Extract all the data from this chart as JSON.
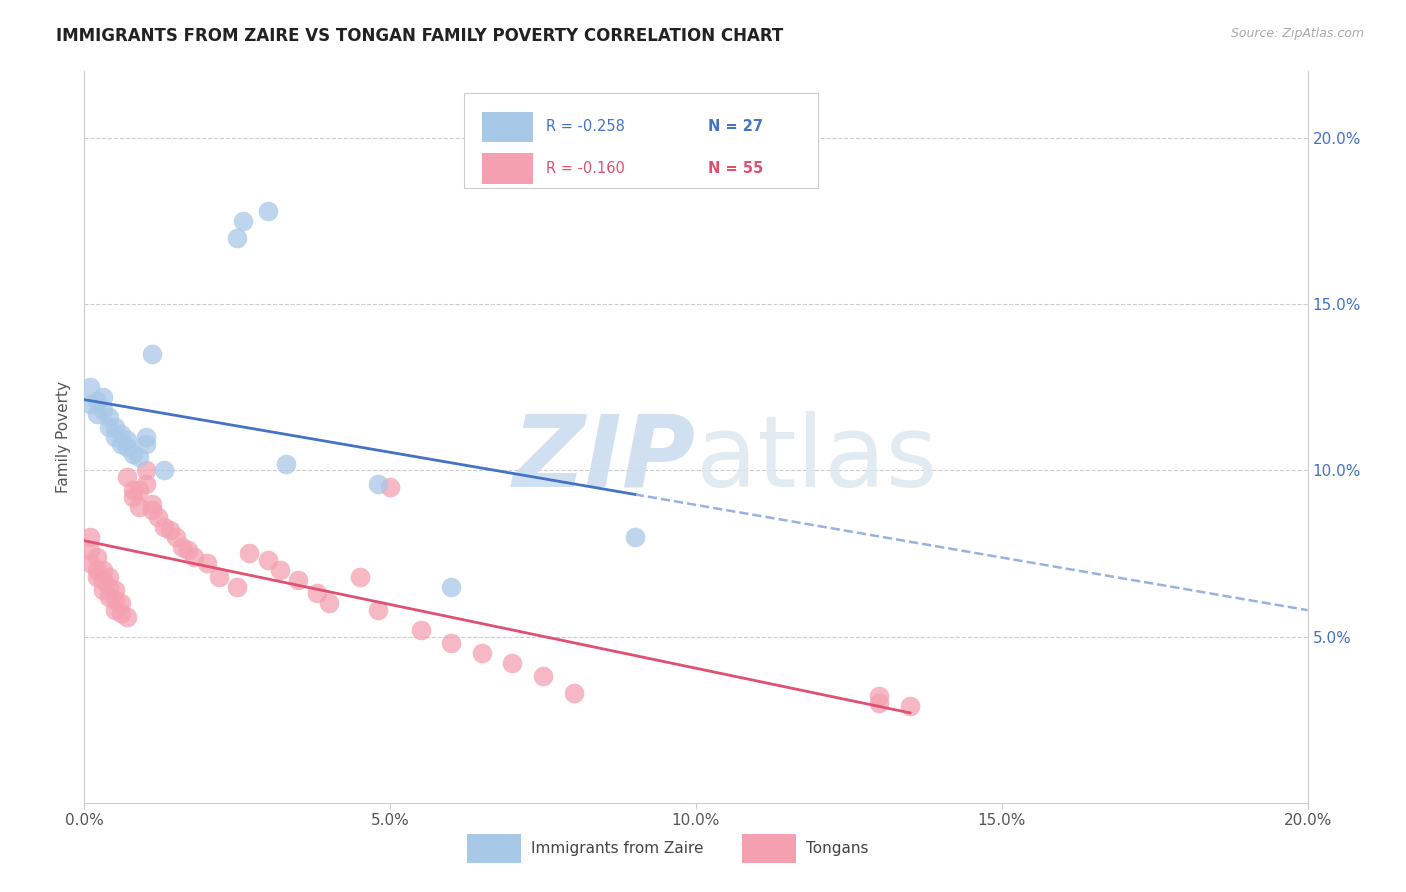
{
  "title": "IMMIGRANTS FROM ZAIRE VS TONGAN FAMILY POVERTY CORRELATION CHART",
  "source": "Source: ZipAtlas.com",
  "ylabel": "Family Poverty",
  "legend_label1": "Immigrants from Zaire",
  "legend_label2": "Tongans",
  "legend_r1": "R = -0.258",
  "legend_n1": "N = 27",
  "legend_r2": "R = -0.160",
  "legend_n2": "N = 55",
  "color_blue": "#a8c8e8",
  "color_pink": "#f4a0b0",
  "color_blue_line": "#4472c4",
  "color_pink_line": "#e05070",
  "color_blue_text": "#4472c4",
  "color_pink_text": "#e05070",
  "xlim": [
    0.0,
    0.2
  ],
  "ylim": [
    0.0,
    0.22
  ],
  "yticks": [
    0.05,
    0.1,
    0.15,
    0.2
  ],
  "ytick_labels": [
    "5.0%",
    "10.0%",
    "15.0%",
    "20.0%"
  ],
  "xticks": [
    0.0,
    0.05,
    0.1,
    0.15,
    0.2
  ],
  "xtick_labels": [
    "0.0%",
    "5.0%",
    "10.0%",
    "15.0%",
    "20.0%"
  ],
  "blue_x": [
    0.001,
    0.001,
    0.002,
    0.002,
    0.003,
    0.003,
    0.004,
    0.004,
    0.005,
    0.005,
    0.006,
    0.006,
    0.007,
    0.007,
    0.008,
    0.009,
    0.01,
    0.01,
    0.011,
    0.013,
    0.025,
    0.026,
    0.03,
    0.033,
    0.048,
    0.06,
    0.09
  ],
  "blue_y": [
    0.12,
    0.125,
    0.117,
    0.121,
    0.118,
    0.122,
    0.113,
    0.116,
    0.11,
    0.113,
    0.108,
    0.111,
    0.107,
    0.109,
    0.105,
    0.104,
    0.108,
    0.11,
    0.135,
    0.1,
    0.17,
    0.175,
    0.178,
    0.102,
    0.096,
    0.065,
    0.08
  ],
  "pink_x": [
    0.001,
    0.001,
    0.001,
    0.002,
    0.002,
    0.002,
    0.003,
    0.003,
    0.003,
    0.004,
    0.004,
    0.004,
    0.005,
    0.005,
    0.005,
    0.006,
    0.006,
    0.007,
    0.007,
    0.008,
    0.008,
    0.009,
    0.009,
    0.01,
    0.01,
    0.011,
    0.011,
    0.012,
    0.013,
    0.014,
    0.015,
    0.016,
    0.017,
    0.018,
    0.02,
    0.022,
    0.025,
    0.027,
    0.03,
    0.032,
    0.035,
    0.038,
    0.04,
    0.045,
    0.048,
    0.05,
    0.055,
    0.06,
    0.065,
    0.07,
    0.075,
    0.08,
    0.13,
    0.13,
    0.135
  ],
  "pink_y": [
    0.072,
    0.076,
    0.08,
    0.068,
    0.07,
    0.074,
    0.064,
    0.067,
    0.07,
    0.062,
    0.065,
    0.068,
    0.058,
    0.061,
    0.064,
    0.057,
    0.06,
    0.056,
    0.098,
    0.092,
    0.094,
    0.089,
    0.094,
    0.096,
    0.1,
    0.088,
    0.09,
    0.086,
    0.083,
    0.082,
    0.08,
    0.077,
    0.076,
    0.074,
    0.072,
    0.068,
    0.065,
    0.075,
    0.073,
    0.07,
    0.067,
    0.063,
    0.06,
    0.068,
    0.058,
    0.095,
    0.052,
    0.048,
    0.045,
    0.042,
    0.038,
    0.033,
    0.032,
    0.03,
    0.029
  ],
  "watermark_zip": "ZIP",
  "watermark_atlas": "atlas",
  "background_color": "#ffffff",
  "grid_color": "#cccccc"
}
